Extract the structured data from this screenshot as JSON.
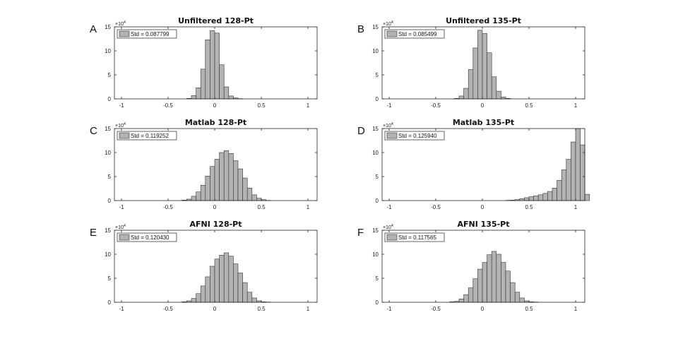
{
  "figure": {
    "bar_color": "#b3b3b3",
    "edge_color": "#333333",
    "axis_color": "#262626"
  },
  "chart_data": [
    {
      "type": "bar",
      "panel_label": "A",
      "title": "Unfiltered 128-Pt",
      "xlim": [
        -1,
        1
      ],
      "ylim": [
        0,
        15
      ],
      "xticks": [
        -1,
        -0.5,
        0,
        0.5,
        1
      ],
      "xtick_labels": [
        "-1",
        "-0.5",
        "0",
        "0.5",
        "1"
      ],
      "yticks": [
        0,
        5,
        10,
        15
      ],
      "ytick_labels": [
        "0",
        "5",
        "10",
        "15"
      ],
      "y_multiplier": "×10",
      "y_exponent": "4",
      "legend": "Std = 0.087799",
      "legend_loc": "top-left",
      "bins": {
        "start": -0.3,
        "width": 0.05
      },
      "values": [
        0.1,
        0.7,
        2.3,
        6.2,
        12.3,
        14.2,
        13.7,
        7.1,
        2.5,
        0.6,
        0.2,
        0.05
      ]
    },
    {
      "type": "bar",
      "panel_label": "B",
      "title": "Unfiltered 135-Pt",
      "xlim": [
        -1,
        1
      ],
      "ylim": [
        0,
        15
      ],
      "xticks": [
        -1,
        -0.5,
        0,
        0.5,
        1
      ],
      "xtick_labels": [
        "-1",
        "-0.5",
        "0",
        "0.5",
        "1"
      ],
      "yticks": [
        0,
        5,
        10,
        15
      ],
      "ytick_labels": [
        "0",
        "5",
        "10",
        "15"
      ],
      "y_multiplier": "×10",
      "y_exponent": "4",
      "legend": "Std = 0.085499",
      "legend_loc": "top-left",
      "bins": {
        "start": -0.3,
        "width": 0.05
      },
      "values": [
        0.1,
        0.6,
        2.2,
        6.1,
        10.6,
        14.3,
        13.6,
        9.6,
        4.6,
        1.6,
        0.4,
        0.1
      ]
    },
    {
      "type": "bar",
      "panel_label": "C",
      "title": "Matlab 128-Pt",
      "xlim": [
        -1,
        1
      ],
      "ylim": [
        0,
        15
      ],
      "xticks": [
        -1,
        -0.5,
        0,
        0.5,
        1
      ],
      "xtick_labels": [
        "-1",
        "-0.5",
        "0",
        "0.5",
        "1"
      ],
      "yticks": [
        0,
        5,
        10,
        15
      ],
      "ytick_labels": [
        "0",
        "5",
        "10",
        "15"
      ],
      "y_multiplier": "×10",
      "y_exponent": "4",
      "legend": "Std = 0.119252",
      "legend_loc": "top-left",
      "bins": {
        "start": -0.35,
        "width": 0.05
      },
      "values": [
        0.1,
        0.3,
        0.9,
        1.8,
        3.2,
        5.1,
        7.1,
        8.6,
        10.0,
        10.4,
        9.8,
        8.3,
        6.6,
        4.7,
        2.6,
        1.2,
        0.5,
        0.2,
        0.05
      ]
    },
    {
      "type": "bar",
      "panel_label": "D",
      "title": "Matlab 135-Pt",
      "xlim": [
        -1,
        1
      ],
      "ylim": [
        0,
        15
      ],
      "xticks": [
        -1,
        -0.5,
        0,
        0.5,
        1
      ],
      "xtick_labels": [
        "-1",
        "-0.5",
        "0",
        "0.5",
        "1"
      ],
      "yticks": [
        0,
        5,
        10,
        15
      ],
      "ytick_labels": [
        "0",
        "5",
        "10",
        "15"
      ],
      "y_multiplier": "×10",
      "y_exponent": "4",
      "legend": "Std = 0.125940",
      "legend_loc": "top-left",
      "bins": {
        "start": 0.25,
        "width": 0.05
      },
      "values": [
        0.05,
        0.1,
        0.2,
        0.4,
        0.6,
        0.8,
        1.0,
        1.2,
        1.5,
        1.9,
        2.6,
        4.2,
        6.4,
        8.6,
        12.2,
        15.0,
        11.6,
        1.3
      ]
    },
    {
      "type": "bar",
      "panel_label": "E",
      "title": "AFNI 128-Pt",
      "xlim": [
        -1,
        1
      ],
      "ylim": [
        0,
        15
      ],
      "xticks": [
        -1,
        -0.5,
        0,
        0.5,
        1
      ],
      "xtick_labels": [
        "-1",
        "-0.5",
        "0",
        "0.5",
        "1"
      ],
      "yticks": [
        0,
        5,
        10,
        15
      ],
      "ytick_labels": [
        "0",
        "5",
        "10",
        "15"
      ],
      "y_multiplier": "×10",
      "y_exponent": "4",
      "legend": "Std = 0.120430",
      "legend_loc": "top-left",
      "bins": {
        "start": -0.35,
        "width": 0.05
      },
      "values": [
        0.1,
        0.3,
        0.8,
        1.8,
        3.4,
        5.3,
        7.5,
        9.0,
        9.8,
        10.3,
        9.6,
        8.0,
        6.1,
        4.1,
        2.1,
        0.9,
        0.3,
        0.1,
        0.05
      ]
    },
    {
      "type": "bar",
      "panel_label": "F",
      "title": "AFNI 135-Pt",
      "xlim": [
        -1,
        1
      ],
      "ylim": [
        0,
        15
      ],
      "xticks": [
        -1,
        -0.5,
        0,
        0.5,
        1
      ],
      "xtick_labels": [
        "-1",
        "-0.5",
        "0",
        "0.5",
        "1"
      ],
      "yticks": [
        0,
        5,
        10,
        15
      ],
      "ytick_labels": [
        "0",
        "5",
        "10",
        "15"
      ],
      "y_multiplier": "×10",
      "y_exponent": "4",
      "legend": "Std = 0.117565",
      "legend_loc": "top-left",
      "bins": {
        "start": -0.35,
        "width": 0.05
      },
      "values": [
        0.1,
        0.2,
        0.7,
        1.6,
        3.0,
        4.9,
        6.9,
        8.3,
        9.9,
        10.6,
        10.0,
        8.3,
        6.5,
        4.1,
        2.1,
        0.9,
        0.3,
        0.1,
        0.05
      ]
    }
  ]
}
